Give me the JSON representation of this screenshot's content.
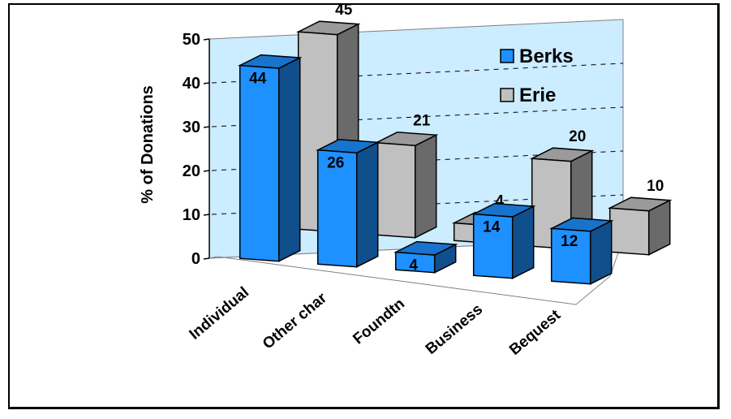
{
  "chart_data": {
    "type": "bar",
    "categories": [
      "Individual",
      "Other char",
      "Foundtn",
      "Business",
      "Bequest"
    ],
    "series": [
      {
        "name": "Berks",
        "values": [
          44,
          26,
          4,
          14,
          12
        ],
        "color": "#1E90FF"
      },
      {
        "name": "Erie",
        "values": [
          45,
          21,
          4,
          20,
          10
        ],
        "color": "#C0C0C0"
      }
    ],
    "title": "",
    "xlabel": "",
    "ylabel": "% of Donations",
    "ylim": [
      0,
      50
    ],
    "yticks": [
      0,
      10,
      20,
      30,
      40,
      50
    ],
    "grid": true,
    "legend_position": "top-right",
    "wall_color": "#CCECFF"
  }
}
